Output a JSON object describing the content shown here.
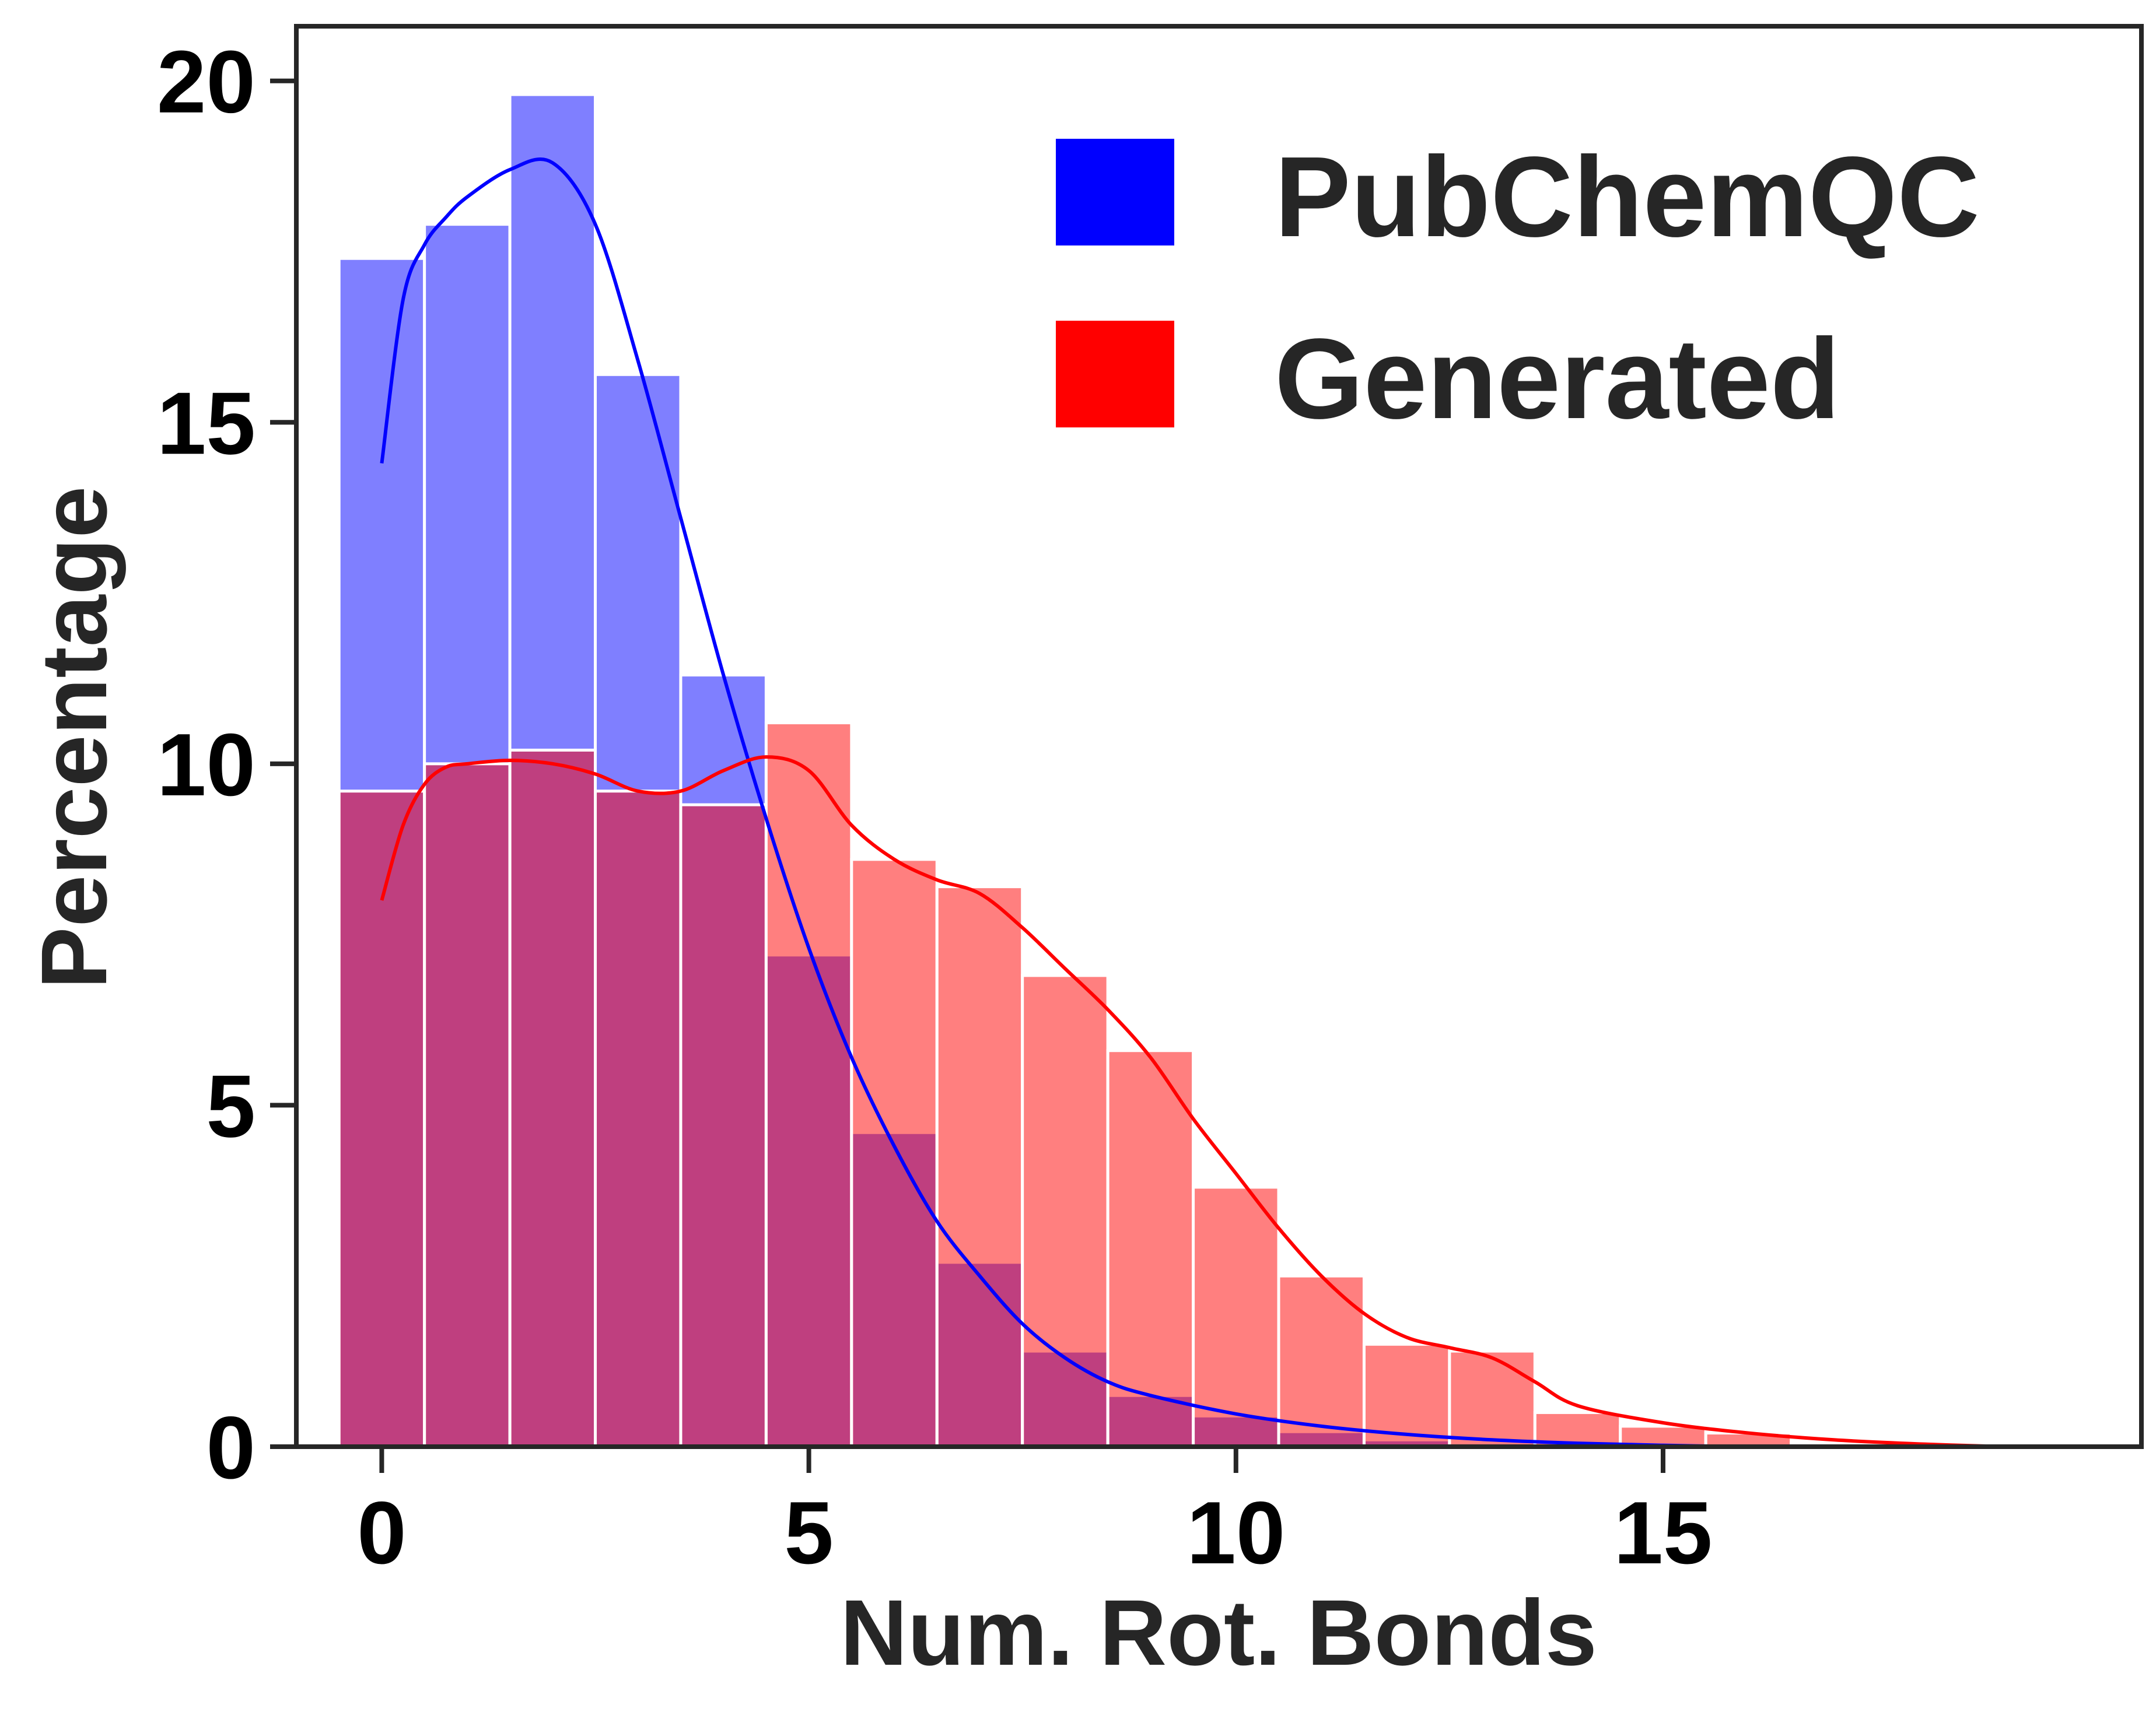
{
  "chart_data": {
    "type": "bar",
    "xlabel": "Num. Rot. Bonds",
    "ylabel": "Percentage",
    "xlim": [
      -1.0,
      20.6
    ],
    "ylim": [
      0,
      20.8
    ],
    "xticks": [
      0,
      5,
      10,
      15
    ],
    "yticks": [
      0,
      5,
      10,
      15,
      20
    ],
    "grid": false,
    "legend_position": "top-right",
    "bin_edges": [
      -0.5,
      0.5,
      1.5,
      2.5,
      3.5,
      4.5,
      5.5,
      6.5,
      7.5,
      8.5,
      9.5,
      10.5,
      11.5,
      12.5,
      13.5,
      14.5,
      15.5,
      16.5,
      17.5,
      18.5
    ],
    "series": [
      {
        "name": "PubChemQC",
        "color": "#0000ff",
        "values": [
          17.4,
          17.9,
          19.8,
          15.7,
          11.3,
          7.2,
          4.6,
          2.7,
          1.4,
          0.75,
          0.45,
          0.22,
          0.1,
          0.05,
          0.02,
          0.01,
          0.0,
          0.0,
          0.0
        ],
        "kde": {
          "x": [
            0,
            0.25,
            0.5,
            0.75,
            1,
            1.5,
            2,
            2.5,
            3,
            3.5,
            4,
            4.5,
            5,
            5.5,
            6,
            6.5,
            7,
            7.5,
            8,
            8.5,
            9,
            10,
            11,
            12,
            13,
            14,
            15,
            16
          ],
          "y": [
            14.4,
            16.8,
            17.6,
            18.0,
            18.3,
            18.7,
            18.8,
            17.9,
            15.9,
            13.6,
            11.3,
            9.2,
            7.3,
            5.7,
            4.4,
            3.3,
            2.5,
            1.8,
            1.3,
            0.95,
            0.75,
            0.48,
            0.3,
            0.18,
            0.1,
            0.05,
            0.02,
            0.0
          ]
        }
      },
      {
        "name": "Generated",
        "color": "#ff0000",
        "values": [
          9.6,
          10.0,
          10.2,
          9.6,
          9.4,
          10.6,
          8.6,
          8.2,
          6.9,
          5.8,
          3.8,
          2.5,
          1.5,
          1.4,
          0.5,
          0.3,
          0.2,
          0.05,
          0.03
        ],
        "kde": {
          "x": [
            0,
            0.25,
            0.5,
            0.75,
            1,
            1.5,
            2,
            2.5,
            3,
            3.5,
            4,
            4.5,
            5,
            5.5,
            6,
            6.5,
            7,
            7.5,
            8,
            8.5,
            9,
            9.5,
            10,
            10.5,
            11,
            11.5,
            12,
            12.5,
            13,
            13.5,
            14,
            15,
            16,
            17,
            18,
            19
          ],
          "y": [
            8.0,
            9.1,
            9.7,
            9.95,
            10.0,
            10.05,
            10.0,
            9.85,
            9.6,
            9.6,
            9.9,
            10.1,
            9.9,
            9.1,
            8.6,
            8.3,
            8.1,
            7.6,
            7.0,
            6.4,
            5.7,
            4.8,
            4.0,
            3.2,
            2.5,
            1.95,
            1.6,
            1.45,
            1.3,
            0.95,
            0.6,
            0.35,
            0.2,
            0.1,
            0.04,
            0.0
          ]
        }
      }
    ]
  }
}
